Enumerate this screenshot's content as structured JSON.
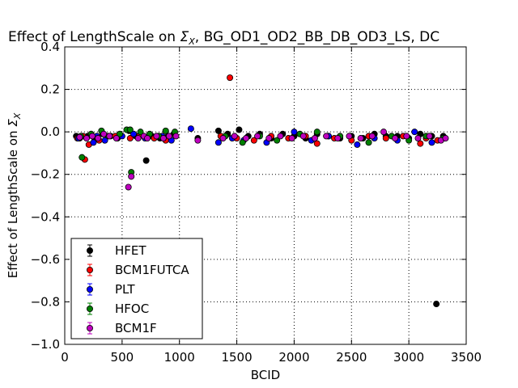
{
  "chart_data": {
    "type": "scatter",
    "title": "Effect of LengthScale on Σ_X, BG_OD1_OD2_BB_DB_OD3_LS, DC",
    "title_parts": {
      "lead": "Effect of LengthScale on ",
      "sigma": "Σ",
      "sub": "X",
      "tail": ", BG_OD1_OD2_BB_DB_OD3_LS, DC"
    },
    "xlabel": "BCID",
    "ylabel": "Effect of LengthScale on Σ_X",
    "ylabel_parts": {
      "lead": "Effect of LengthScale on ",
      "sigma": "Σ",
      "sub": "X"
    },
    "xlim": [
      0,
      3500
    ],
    "ylim": [
      -1.0,
      0.4
    ],
    "xticks": [
      0,
      500,
      1000,
      1500,
      2000,
      2500,
      3000,
      3500
    ],
    "xtick_labels": [
      "0",
      "500",
      "1000",
      "1500",
      "2000",
      "2500",
      "3000",
      "3500"
    ],
    "yticks": [
      -1.0,
      -0.8,
      -0.6,
      -0.4,
      -0.2,
      0.0,
      0.2,
      0.4
    ],
    "ytick_labels": [
      "−1.0",
      "−0.8",
      "−0.6",
      "−0.4",
      "−0.2",
      "0.0",
      "0.2",
      "0.4"
    ],
    "grid": true,
    "legend_position": "lower-left",
    "series": [
      {
        "name": "HFET",
        "color": "#000000",
        "points": [
          [
            100,
            -0.02
          ],
          [
            130,
            -0.03
          ],
          [
            200,
            -0.02
          ],
          [
            260,
            -0.03
          ],
          [
            330,
            -0.01
          ],
          [
            400,
            -0.02
          ],
          [
            460,
            -0.03
          ],
          [
            560,
            0.005
          ],
          [
            620,
            -0.02
          ],
          [
            710,
            -0.135
          ],
          [
            760,
            -0.02
          ],
          [
            830,
            -0.03
          ],
          [
            900,
            -0.02
          ],
          [
            950,
            -0.01
          ],
          [
            1160,
            -0.03
          ],
          [
            1340,
            0.005
          ],
          [
            1420,
            -0.01
          ],
          [
            1520,
            0.01
          ],
          [
            1600,
            -0.02
          ],
          [
            1700,
            -0.01
          ],
          [
            1800,
            -0.03
          ],
          [
            1900,
            -0.01
          ],
          [
            2000,
            -0.02
          ],
          [
            2100,
            -0.03
          ],
          [
            2200,
            -0.01
          ],
          [
            2300,
            -0.02
          ],
          [
            2400,
            -0.03
          ],
          [
            2500,
            -0.02
          ],
          [
            2600,
            -0.03
          ],
          [
            2700,
            -0.01
          ],
          [
            2800,
            -0.02
          ],
          [
            2900,
            -0.02
          ],
          [
            3000,
            -0.03
          ],
          [
            3100,
            -0.01
          ],
          [
            3200,
            -0.02
          ],
          [
            3240,
            -0.81
          ],
          [
            3300,
            -0.02
          ]
        ]
      },
      {
        "name": "BCM1FUTCA",
        "color": "#ff0000",
        "points": [
          [
            110,
            -0.03
          ],
          [
            160,
            -0.02
          ],
          [
            175,
            -0.13
          ],
          [
            210,
            -0.06
          ],
          [
            300,
            -0.04
          ],
          [
            440,
            -0.02
          ],
          [
            570,
            -0.03
          ],
          [
            650,
            -0.02
          ],
          [
            780,
            -0.03
          ],
          [
            880,
            -0.04
          ],
          [
            1360,
            -0.02
          ],
          [
            1440,
            0.255
          ],
          [
            1500,
            -0.03
          ],
          [
            1650,
            -0.04
          ],
          [
            1800,
            -0.02
          ],
          [
            1950,
            -0.03
          ],
          [
            2100,
            -0.02
          ],
          [
            2200,
            -0.055
          ],
          [
            2350,
            -0.03
          ],
          [
            2500,
            -0.04
          ],
          [
            2650,
            -0.02
          ],
          [
            2800,
            -0.03
          ],
          [
            2950,
            -0.02
          ],
          [
            3100,
            -0.055
          ],
          [
            3150,
            -0.03
          ],
          [
            3250,
            -0.04
          ]
        ]
      },
      {
        "name": "PLT",
        "color": "#0000ff",
        "points": [
          [
            120,
            -0.03
          ],
          [
            250,
            -0.05
          ],
          [
            280,
            -0.02
          ],
          [
            350,
            -0.04
          ],
          [
            500,
            -0.02
          ],
          [
            600,
            -0.01
          ],
          [
            700,
            -0.03
          ],
          [
            850,
            -0.02
          ],
          [
            930,
            -0.04
          ],
          [
            1100,
            0.015
          ],
          [
            1340,
            -0.05
          ],
          [
            1460,
            -0.03
          ],
          [
            1560,
            -0.04
          ],
          [
            1760,
            -0.05
          ],
          [
            2000,
            0.0
          ],
          [
            2150,
            -0.04
          ],
          [
            2300,
            -0.02
          ],
          [
            2550,
            -0.06
          ],
          [
            2700,
            -0.03
          ],
          [
            2900,
            -0.04
          ],
          [
            3050,
            0.0
          ],
          [
            3200,
            -0.05
          ],
          [
            3300,
            -0.03
          ]
        ]
      },
      {
        "name": "HFOC",
        "color": "#008000",
        "points": [
          [
            140,
            -0.02
          ],
          [
            150,
            -0.12
          ],
          [
            230,
            -0.01
          ],
          [
            320,
            0.005
          ],
          [
            380,
            -0.02
          ],
          [
            480,
            -0.01
          ],
          [
            540,
            0.01
          ],
          [
            570,
            0.01
          ],
          [
            580,
            -0.19
          ],
          [
            660,
            0.0
          ],
          [
            740,
            -0.01
          ],
          [
            820,
            -0.02
          ],
          [
            880,
            0.005
          ],
          [
            960,
            0.0
          ],
          [
            1400,
            -0.02
          ],
          [
            1550,
            -0.05
          ],
          [
            1700,
            -0.02
          ],
          [
            1850,
            -0.04
          ],
          [
            2050,
            -0.01
          ],
          [
            2200,
            0.0
          ],
          [
            2400,
            -0.02
          ],
          [
            2650,
            -0.05
          ],
          [
            2850,
            -0.02
          ],
          [
            3000,
            -0.04
          ],
          [
            3150,
            -0.02
          ],
          [
            3300,
            -0.03
          ]
        ]
      },
      {
        "name": "BCM1F",
        "color": "#bf00bf",
        "points": [
          [
            130,
            -0.025
          ],
          [
            190,
            -0.03
          ],
          [
            240,
            -0.02
          ],
          [
            290,
            -0.03
          ],
          [
            340,
            -0.01
          ],
          [
            390,
            -0.02
          ],
          [
            450,
            -0.03
          ],
          [
            555,
            -0.26
          ],
          [
            580,
            -0.21
          ],
          [
            640,
            -0.03
          ],
          [
            690,
            -0.02
          ],
          [
            720,
            -0.03
          ],
          [
            800,
            -0.02
          ],
          [
            860,
            -0.03
          ],
          [
            910,
            -0.02
          ],
          [
            970,
            -0.02
          ],
          [
            1160,
            -0.04
          ],
          [
            1380,
            -0.03
          ],
          [
            1480,
            -0.02
          ],
          [
            1580,
            -0.03
          ],
          [
            1680,
            -0.02
          ],
          [
            1780,
            -0.03
          ],
          [
            1880,
            -0.02
          ],
          [
            1980,
            -0.03
          ],
          [
            2080,
            -0.02
          ],
          [
            2180,
            -0.03
          ],
          [
            2280,
            -0.02
          ],
          [
            2380,
            -0.03
          ],
          [
            2480,
            -0.02
          ],
          [
            2580,
            -0.03
          ],
          [
            2680,
            -0.02
          ],
          [
            2780,
            0.0
          ],
          [
            2880,
            -0.03
          ],
          [
            2980,
            -0.02
          ],
          [
            3080,
            -0.03
          ],
          [
            3180,
            -0.02
          ],
          [
            3280,
            -0.04
          ],
          [
            3320,
            -0.03
          ]
        ]
      }
    ]
  }
}
